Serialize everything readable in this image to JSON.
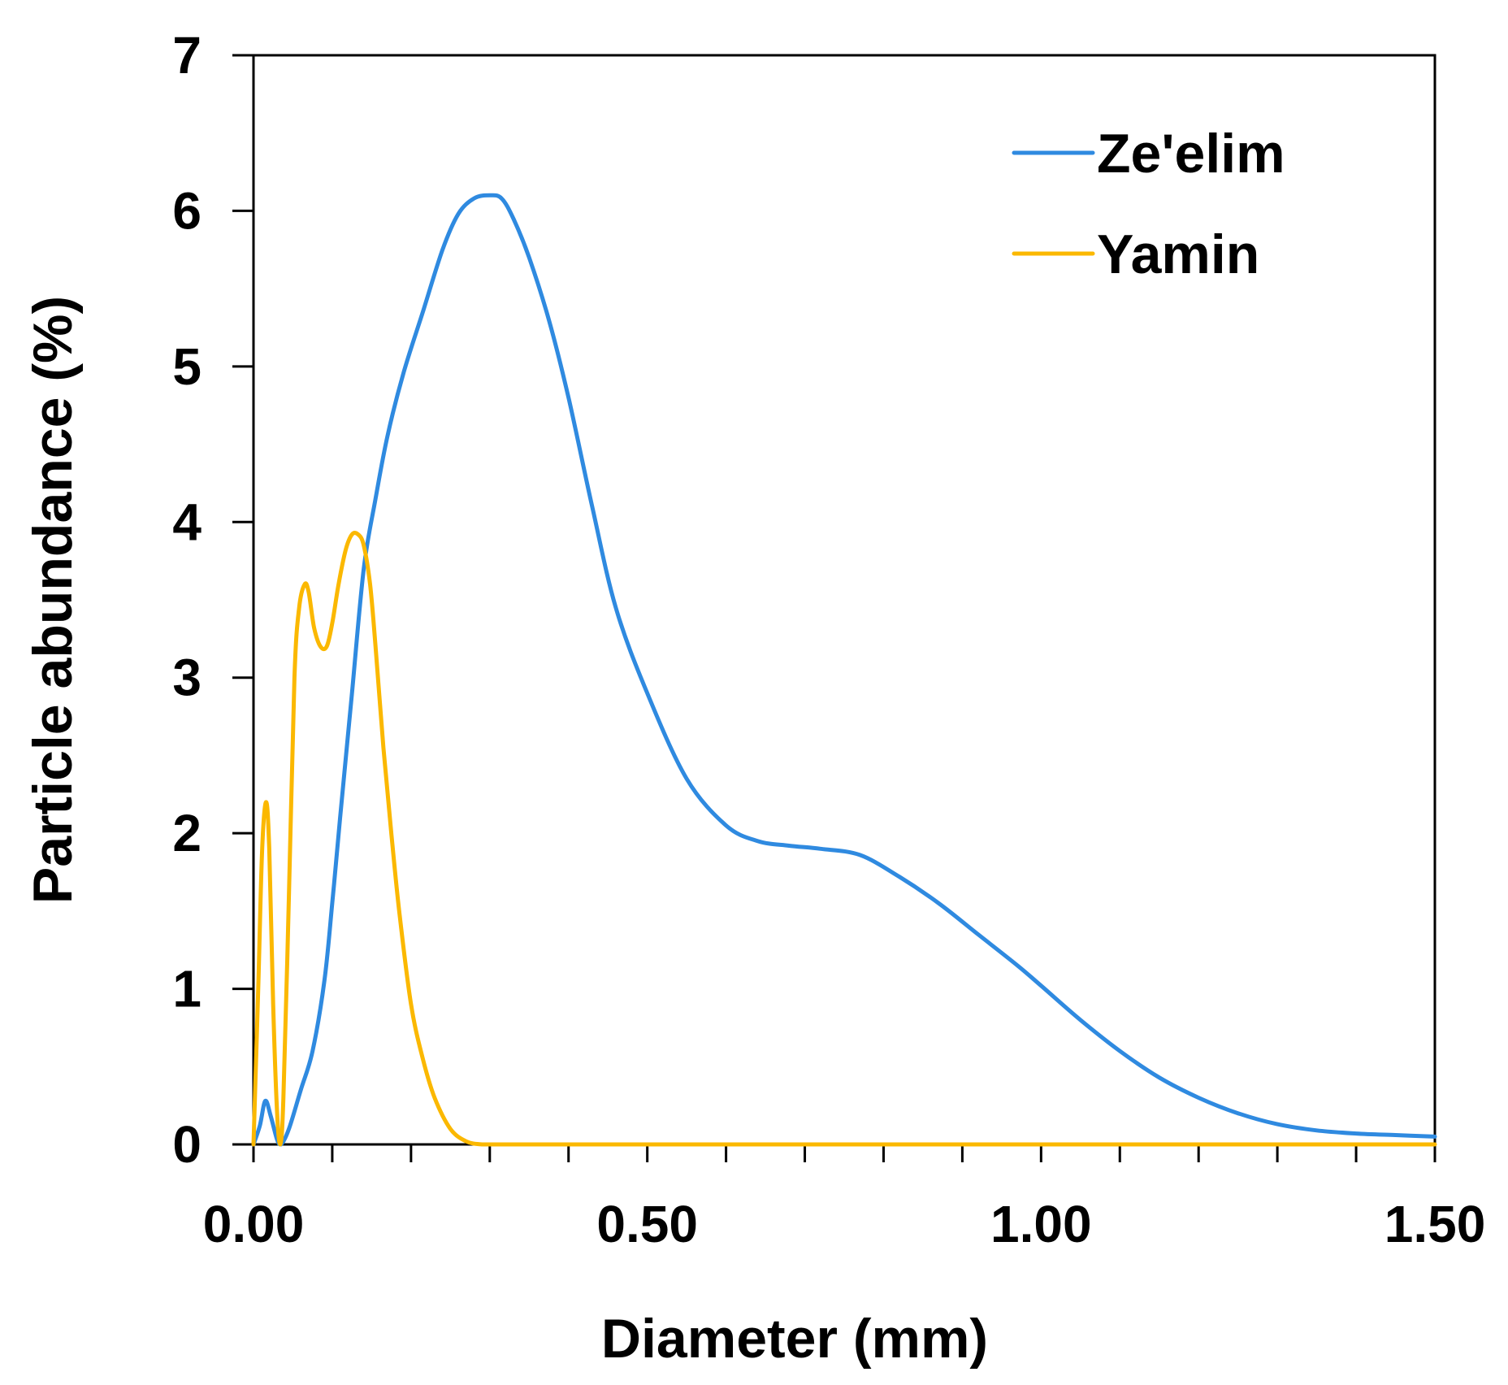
{
  "chart_data": {
    "type": "line",
    "title": "",
    "xlabel": "Diameter (mm)",
    "ylabel": "Particle abundance (%)",
    "xlim": [
      0,
      1.5
    ],
    "ylim": [
      0,
      7
    ],
    "x_ticks": [
      "0.00",
      "0.50",
      "1.00",
      "1.50"
    ],
    "x_tick_values": [
      0,
      0.5,
      1.0,
      1.5
    ],
    "y_ticks": [
      "0",
      "1",
      "2",
      "3",
      "4",
      "5",
      "6",
      "7"
    ],
    "y_tick_values": [
      0,
      1,
      2,
      3,
      4,
      5,
      6,
      7
    ],
    "x_minor_step": 0.1,
    "grid": false,
    "legend_position": "top-right",
    "series": [
      {
        "name": "Ze'elim",
        "color": "#2f8ae0",
        "x": [
          0,
          0.008,
          0.015,
          0.022,
          0.03,
          0.035,
          0.045,
          0.06,
          0.075,
          0.09,
          0.1,
          0.11,
          0.125,
          0.14,
          0.155,
          0.17,
          0.19,
          0.215,
          0.24,
          0.26,
          0.28,
          0.3,
          0.315,
          0.33,
          0.35,
          0.375,
          0.4,
          0.43,
          0.46,
          0.5,
          0.55,
          0.6,
          0.64,
          0.68,
          0.72,
          0.77,
          0.82,
          0.87,
          0.92,
          0.97,
          1.0,
          1.05,
          1.1,
          1.15,
          1.2,
          1.25,
          1.3,
          1.35,
          1.4,
          1.45,
          1.5
        ],
        "y": [
          0.0,
          0.12,
          0.28,
          0.18,
          0.03,
          0.0,
          0.1,
          0.35,
          0.6,
          1.05,
          1.55,
          2.1,
          2.9,
          3.7,
          4.15,
          4.55,
          4.95,
          5.35,
          5.75,
          5.98,
          6.08,
          6.1,
          6.08,
          5.95,
          5.7,
          5.3,
          4.8,
          4.1,
          3.45,
          2.9,
          2.35,
          2.05,
          1.95,
          1.92,
          1.9,
          1.86,
          1.72,
          1.55,
          1.35,
          1.15,
          1.02,
          0.8,
          0.6,
          0.43,
          0.3,
          0.2,
          0.13,
          0.09,
          0.07,
          0.06,
          0.05
        ]
      },
      {
        "name": "Yamin",
        "color": "#fbb800",
        "x": [
          0,
          0.006,
          0.011,
          0.016,
          0.02,
          0.025,
          0.03,
          0.034,
          0.038,
          0.045,
          0.052,
          0.058,
          0.065,
          0.07,
          0.077,
          0.085,
          0.093,
          0.1,
          0.108,
          0.117,
          0.125,
          0.133,
          0.14,
          0.148,
          0.155,
          0.165,
          0.175,
          0.185,
          0.2,
          0.215,
          0.23,
          0.25,
          0.27,
          0.29,
          0.31,
          0.35,
          0.4,
          0.5,
          0.7,
          1.0,
          1.3,
          1.5
        ],
        "y": [
          0.0,
          1.0,
          1.9,
          2.2,
          1.9,
          0.9,
          0.2,
          0.0,
          0.3,
          1.6,
          3.0,
          3.45,
          3.6,
          3.55,
          3.32,
          3.2,
          3.2,
          3.35,
          3.6,
          3.82,
          3.92,
          3.92,
          3.85,
          3.6,
          3.2,
          2.55,
          2.0,
          1.5,
          0.9,
          0.55,
          0.3,
          0.1,
          0.02,
          0.0,
          0.0,
          0.0,
          0.0,
          0.0,
          0.0,
          0.0,
          0.0,
          0.0
        ]
      }
    ]
  }
}
